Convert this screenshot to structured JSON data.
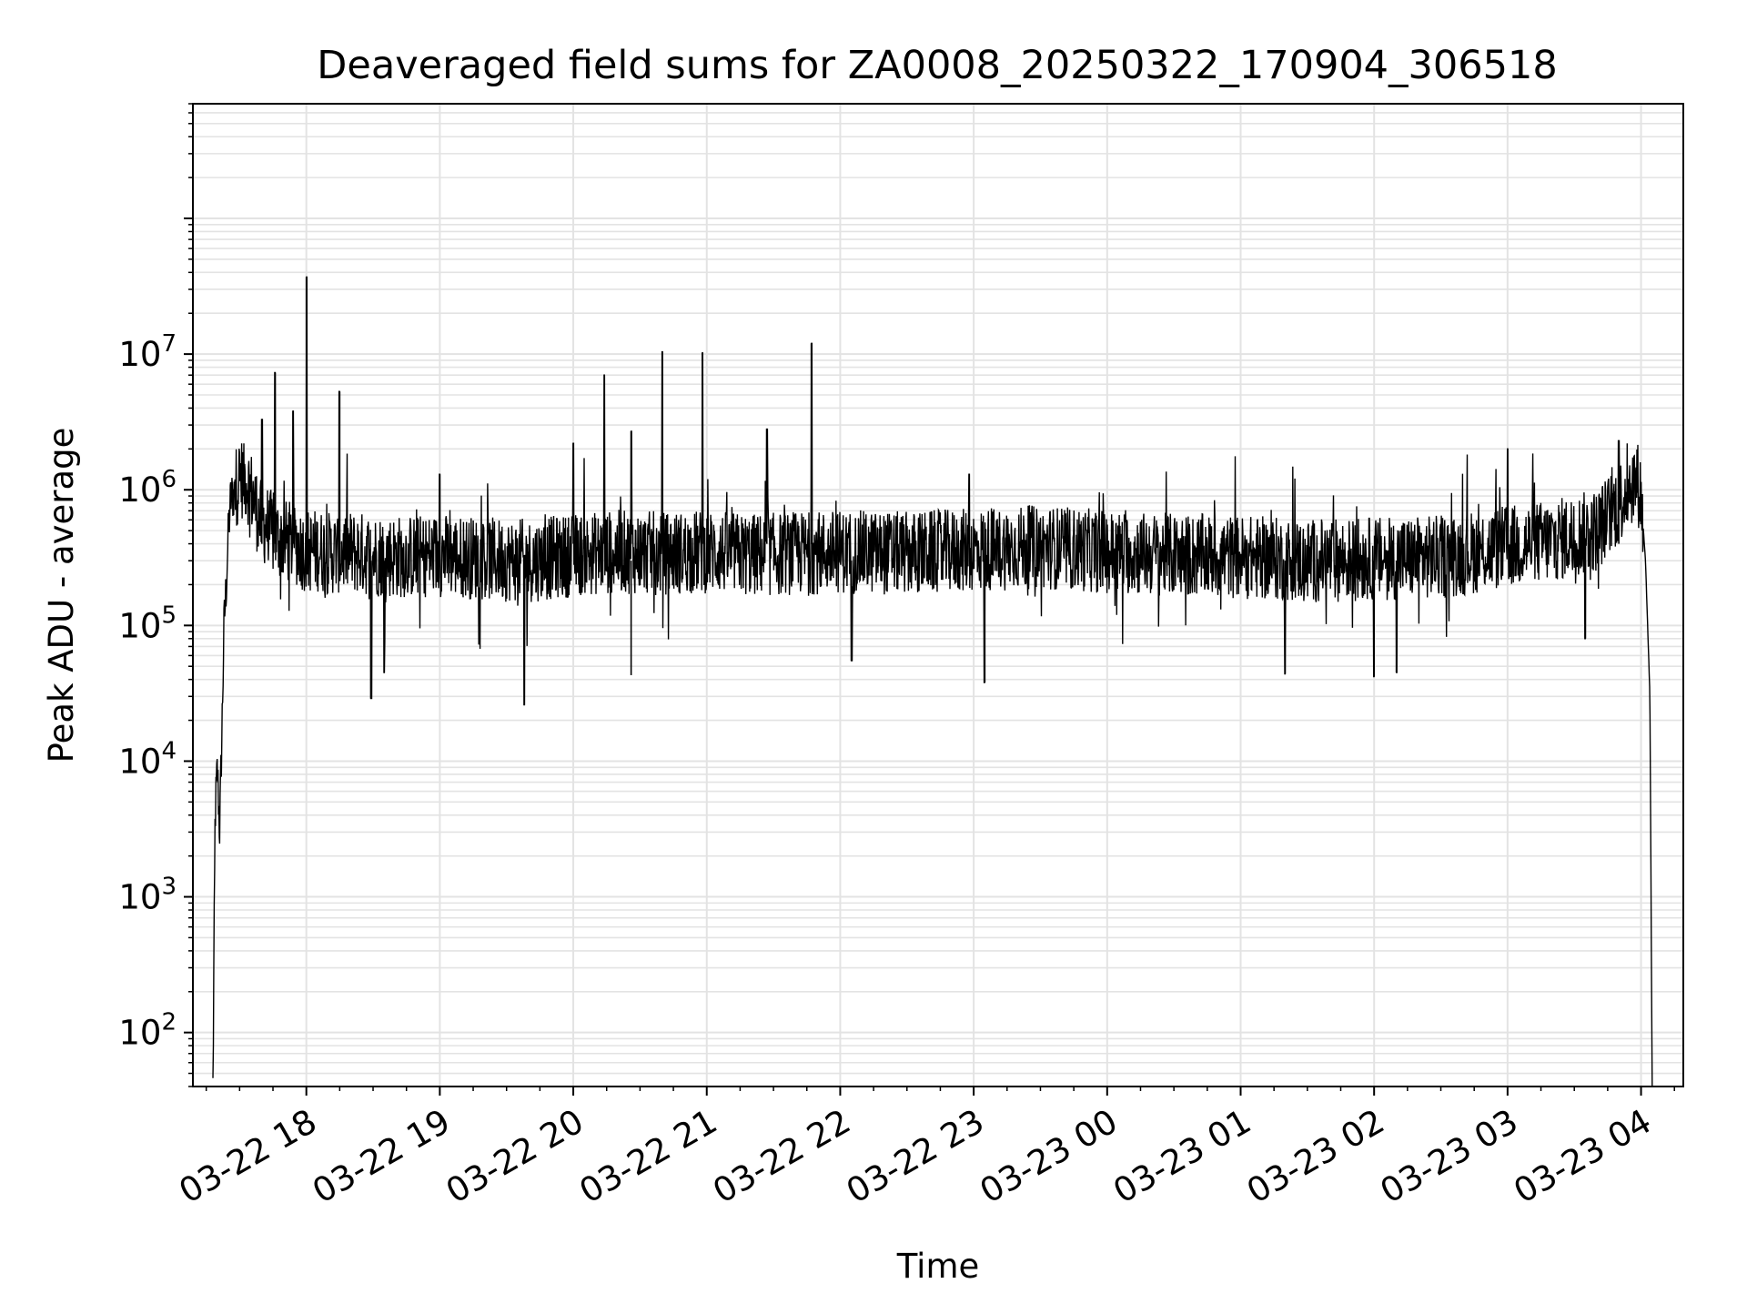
{
  "chart_data": {
    "type": "line",
    "title": "Deaveraged field sums for ZA0008_20250322_170904_306518",
    "xlabel": "Time",
    "ylabel": "Peak ADU - average",
    "yscale": "log",
    "ylim": [
      40,
      700000000
    ],
    "xlim": [
      "2025-03-22 17:09",
      "2025-03-23 04:19"
    ],
    "grid": true,
    "color": "#000000",
    "x_ticks": [
      {
        "value": "2025-03-22 18:00",
        "label": "03-22 18"
      },
      {
        "value": "2025-03-22 19:00",
        "label": "03-22 19"
      },
      {
        "value": "2025-03-22 20:00",
        "label": "03-22 20"
      },
      {
        "value": "2025-03-22 21:00",
        "label": "03-22 21"
      },
      {
        "value": "2025-03-22 22:00",
        "label": "03-22 22"
      },
      {
        "value": "2025-03-22 23:00",
        "label": "03-22 23"
      },
      {
        "value": "2025-03-23 00:00",
        "label": "03-23 00"
      },
      {
        "value": "2025-03-23 01:00",
        "label": "03-23 01"
      },
      {
        "value": "2025-03-23 02:00",
        "label": "03-23 02"
      },
      {
        "value": "2025-03-23 03:00",
        "label": "03-23 03"
      },
      {
        "value": "2025-03-23 04:00",
        "label": "03-23 04"
      }
    ],
    "y_ticks": [
      {
        "value": 100,
        "base": "10",
        "exp": "2"
      },
      {
        "value": 1000,
        "base": "10",
        "exp": "3"
      },
      {
        "value": 10000,
        "base": "10",
        "exp": "4"
      },
      {
        "value": 100000,
        "base": "10",
        "exp": "5"
      },
      {
        "value": 1000000,
        "base": "10",
        "exp": "6"
      },
      {
        "value": 10000000,
        "base": "10",
        "exp": "7"
      }
    ],
    "series": [
      {
        "x": [
          "2025-03-22 17:18",
          "2025-03-22 17:19",
          "2025-03-22 17:20",
          "2025-03-22 17:21",
          "2025-03-22 17:22",
          "2025-03-22 17:23",
          "2025-03-22 17:24",
          "2025-03-22 17:25",
          "2025-03-22 17:26",
          "2025-03-22 17:28",
          "2025-03-22 17:30",
          "2025-03-22 17:33",
          "2025-03-22 17:36",
          "2025-03-22 17:39",
          "2025-03-22 17:42",
          "2025-03-22 17:46",
          "2025-03-22 17:50",
          "2025-03-22 17:55",
          "2025-03-22 18:00",
          "2025-03-22 18:05",
          "2025-03-22 18:10",
          "2025-03-22 18:18",
          "2025-03-22 18:30",
          "2025-03-22 18:45",
          "2025-03-22 19:00",
          "2025-03-22 19:20",
          "2025-03-22 19:40",
          "2025-03-22 20:00",
          "2025-03-22 20:20",
          "2025-03-22 20:40",
          "2025-03-22 21:00",
          "2025-03-22 21:20",
          "2025-03-22 21:40",
          "2025-03-22 22:00",
          "2025-03-22 22:30",
          "2025-03-22 23:00",
          "2025-03-22 23:30",
          "2025-03-23 00:00",
          "2025-03-23 00:30",
          "2025-03-23 01:00",
          "2025-03-23 01:30",
          "2025-03-23 02:00",
          "2025-03-23 02:30",
          "2025-03-23 03:00",
          "2025-03-23 03:20",
          "2025-03-23 03:40",
          "2025-03-23 03:50",
          "2025-03-23 03:55",
          "2025-03-23 03:58",
          "2025-03-23 04:00",
          "2025-03-23 04:02",
          "2025-03-23 04:04",
          "2025-03-23 04:05"
        ],
        "y": [
          40,
          4000,
          9000,
          3000,
          15000,
          100000,
          200000,
          500000,
          850000,
          1000000,
          1250000,
          1200000,
          900000,
          600000,
          550000,
          450000,
          420000,
          400000,
          350000,
          360000,
          340000,
          350000,
          330000,
          320000,
          330000,
          310000,
          300000,
          330000,
          350000,
          340000,
          350000,
          330000,
          340000,
          350000,
          340000,
          360000,
          380000,
          350000,
          330000,
          320000,
          300000,
          310000,
          320000,
          380000,
          420000,
          500000,
          800000,
          1100000,
          1200000,
          900000,
          300000,
          30000,
          40
        ],
        "spikes": [
          {
            "x": "2025-03-22 17:40",
            "y": 3300000
          },
          {
            "x": "2025-03-22 17:46",
            "y": 7300000
          },
          {
            "x": "2025-03-22 17:54",
            "y": 3800000
          },
          {
            "x": "2025-03-22 18:00",
            "y": 37000000
          },
          {
            "x": "2025-03-22 18:15",
            "y": 5300000
          },
          {
            "x": "2025-03-22 19:00",
            "y": 1300000
          },
          {
            "x": "2025-03-22 20:00",
            "y": 2200000
          },
          {
            "x": "2025-03-22 20:14",
            "y": 7000000
          },
          {
            "x": "2025-03-22 20:26",
            "y": 2700000
          },
          {
            "x": "2025-03-22 20:40",
            "y": 10400000
          },
          {
            "x": "2025-03-22 20:58",
            "y": 10200000
          },
          {
            "x": "2025-03-22 21:27",
            "y": 2800000
          },
          {
            "x": "2025-03-22 21:47",
            "y": 12000000
          },
          {
            "x": "2025-03-22 22:58",
            "y": 1300000
          },
          {
            "x": "2025-03-23 03:00",
            "y": 2000000
          },
          {
            "x": "2025-03-23 03:50",
            "y": 2300000
          }
        ],
        "dips": [
          {
            "x": "2025-03-22 18:29",
            "y": 29000
          },
          {
            "x": "2025-03-22 18:35",
            "y": 45000
          },
          {
            "x": "2025-03-22 19:38",
            "y": 26000
          },
          {
            "x": "2025-03-22 20:26",
            "y": 43000
          },
          {
            "x": "2025-03-22 22:05",
            "y": 55000
          },
          {
            "x": "2025-03-22 23:05",
            "y": 38000
          },
          {
            "x": "2025-03-23 01:20",
            "y": 44000
          },
          {
            "x": "2025-03-23 02:00",
            "y": 42000
          },
          {
            "x": "2025-03-23 02:10",
            "y": 45000
          },
          {
            "x": "2025-03-23 03:35",
            "y": 80000
          }
        ],
        "noise_band": {
          "low": 100000,
          "high": 700000
        }
      }
    ]
  }
}
